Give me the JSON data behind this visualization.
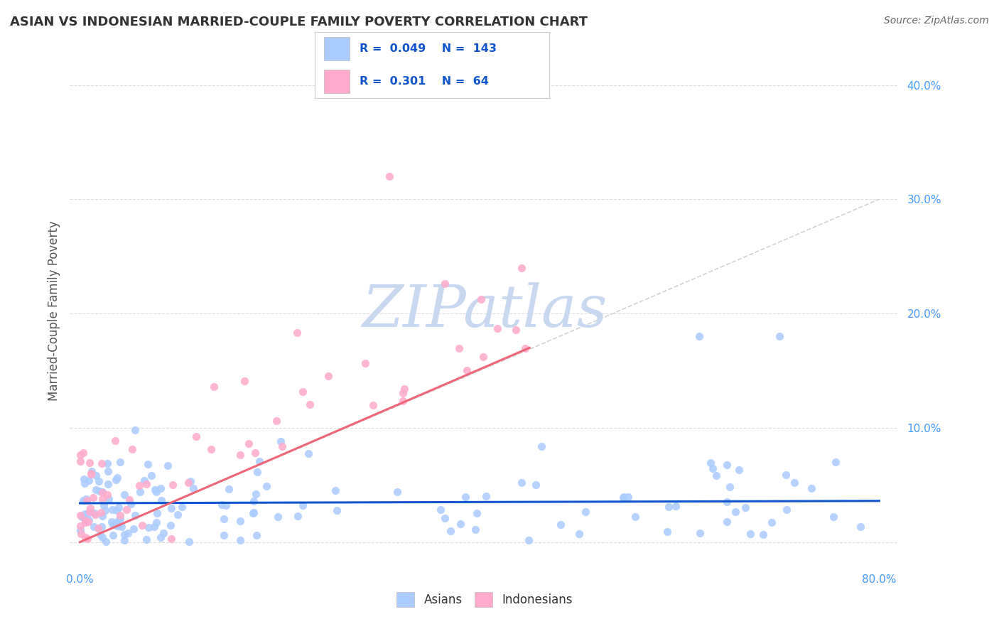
{
  "title": "ASIAN VS INDONESIAN MARRIED-COUPLE FAMILY POVERTY CORRELATION CHART",
  "source": "Source: ZipAtlas.com",
  "ylabel": "Married-Couple Family Poverty",
  "xlim": [
    -0.01,
    0.82
  ],
  "ylim": [
    -0.025,
    0.43
  ],
  "xticks": [
    0.0,
    0.1,
    0.2,
    0.3,
    0.4,
    0.5,
    0.6,
    0.7,
    0.8
  ],
  "yticks": [
    0.0,
    0.1,
    0.2,
    0.3,
    0.4
  ],
  "ytick_labels": [
    "",
    "10.0%",
    "20.0%",
    "30.0%",
    "40.0%"
  ],
  "xtick_labels": [
    "0.0%",
    "",
    "",
    "",
    "",
    "",
    "",
    "",
    "80.0%"
  ],
  "asian_color": "#aaccff",
  "indonesian_color": "#ffaacc",
  "asian_R": 0.049,
  "asian_N": 143,
  "indonesian_R": 0.301,
  "indonesian_N": 64,
  "watermark": "ZIPatlas",
  "watermark_color": "#c8d8f0",
  "asian_line_color": "#1155cc",
  "indonesian_line_color": "#ee6677",
  "ref_line_color": "#cccccc",
  "background_color": "#ffffff",
  "grid_color": "#dddddd",
  "title_color": "#333333",
  "tick_label_color": "#4499ff",
  "legend_r_color": "#1155cc",
  "asian_line_y0": 0.034,
  "asian_line_y1": 0.036,
  "indo_line_x0": 0.0,
  "indo_line_y0": 0.0,
  "indo_line_x1": 0.45,
  "indo_line_y1": 0.17,
  "ref_line_x0": 0.0,
  "ref_line_y0": 0.0,
  "ref_line_x1": 0.8,
  "ref_line_y1": 0.3
}
